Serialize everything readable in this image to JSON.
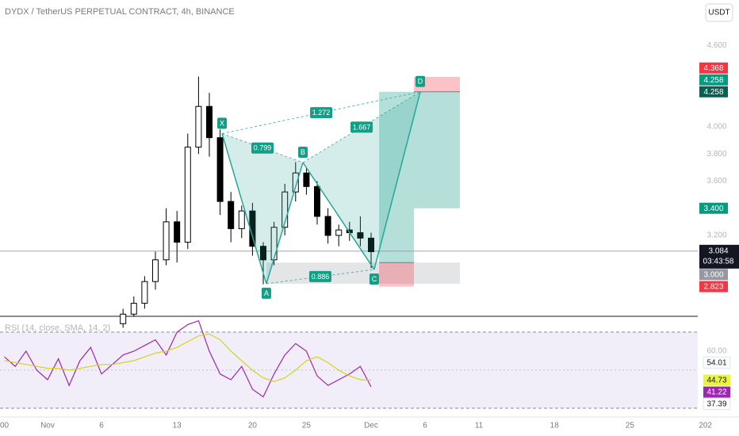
{
  "chart_data": {
    "type": "candlestick",
    "title": "DYDX / TetherUS PERPETUAL CONTRACT, 4h, BINANCE",
    "currency": "USDT",
    "x": [
      7,
      8,
      9,
      10,
      11,
      12,
      13,
      14,
      15,
      16,
      17,
      18,
      19,
      20,
      21,
      22,
      23,
      24,
      25,
      26,
      27,
      28,
      29,
      30
    ],
    "open": [
      2.55,
      2.62,
      2.7,
      2.86,
      3.02,
      3.3,
      3.15,
      3.85,
      4.15,
      3.92,
      3.45,
      3.25,
      3.38,
      3.12,
      3.02,
      3.26,
      3.52,
      3.66,
      3.56,
      3.34,
      3.2,
      3.24,
      3.22,
      3.18
    ],
    "high": [
      2.66,
      2.75,
      2.9,
      3.08,
      3.4,
      3.38,
      3.95,
      4.37,
      4.25,
      3.98,
      3.52,
      3.42,
      3.44,
      3.15,
      3.3,
      3.58,
      3.74,
      3.7,
      3.6,
      3.4,
      3.28,
      3.3,
      3.34,
      3.22
    ],
    "low": [
      2.52,
      2.6,
      2.66,
      2.8,
      2.98,
      3.0,
      3.1,
      3.8,
      3.78,
      3.35,
      3.15,
      3.18,
      3.05,
      2.84,
      2.98,
      3.2,
      3.45,
      3.5,
      3.28,
      3.14,
      3.12,
      3.16,
      3.12,
      2.96
    ],
    "close": [
      2.62,
      2.7,
      2.86,
      3.02,
      3.3,
      3.15,
      3.85,
      4.15,
      3.92,
      3.45,
      3.25,
      3.38,
      3.12,
      3.02,
      3.26,
      3.52,
      3.66,
      3.56,
      3.34,
      3.2,
      3.24,
      3.22,
      3.18,
      3.08
    ],
    "up_color": "#ffffff",
    "down_color": "#000000",
    "xlim": [
      -4.41,
      60.29
    ],
    "xticks": [
      {
        "value": -4,
        "label": "00"
      },
      {
        "value": 0,
        "label": "Nov"
      },
      {
        "value": 5,
        "label": "6"
      },
      {
        "value": 12,
        "label": "13"
      },
      {
        "value": 19,
        "label": "20"
      },
      {
        "value": 24,
        "label": "25"
      },
      {
        "value": 30,
        "label": "Dec"
      },
      {
        "value": 35,
        "label": "6"
      },
      {
        "value": 40,
        "label": "11"
      },
      {
        "value": 47,
        "label": "18"
      },
      {
        "value": 54,
        "label": "25"
      },
      {
        "value": 61,
        "label": "202"
      }
    ],
    "ylim": [
      2.61,
      4.934
    ],
    "yticks": [
      {
        "value": 4.6,
        "label": "4.600"
      },
      {
        "value": 4.0,
        "label": "4.000"
      },
      {
        "value": 3.8,
        "label": "3.800"
      },
      {
        "value": 3.6,
        "label": "3.600"
      },
      {
        "value": 3.2,
        "label": "3.200"
      }
    ],
    "last_price": {
      "value": 3.084,
      "countdown": "03:43:58"
    },
    "price_labels": [
      {
        "value": 4.368,
        "color": "#f23645"
      },
      {
        "value": 4.258,
        "color": "#0b5e52"
      },
      {
        "value": 4.258,
        "color": "#089981"
      },
      {
        "value": 3.4,
        "label": "3.400",
        "color": "#089981"
      },
      {
        "value": 3,
        "label": "3.000",
        "color": "#9598a1"
      },
      {
        "value": 2.823,
        "color": "#f23645"
      }
    ],
    "pattern": {
      "color": "#26a69a",
      "points": [
        {
          "name": "X",
          "x": 16.18,
          "y": 3.95
        },
        {
          "name": "A",
          "x": 20.29,
          "y": 2.844
        },
        {
          "name": "B",
          "x": 23.68,
          "y": 3.737
        },
        {
          "name": "C",
          "x": 30.29,
          "y": 2.949
        },
        {
          "name": "D",
          "x": 34.56,
          "y": 4.258
        }
      ],
      "ratios": {
        "XD": 1.272,
        "XB": 0.799,
        "BD": 1.667,
        "AC": 0.886
      }
    },
    "positions": [
      {
        "x": [
          30.74,
          33.97
        ],
        "entry": 3,
        "target": 4.258,
        "stop": 2.823
      },
      {
        "x": [
          33.97,
          38.23
        ],
        "entry": 4.258,
        "target": 3.4,
        "stop": 4.368
      }
    ],
    "rsi": {
      "title": "RSI (14, close, SMA, 14, 2)",
      "ylim": [
        27.9,
        77.9
      ],
      "yticks": [
        {
          "value": 60,
          "label": "60.00"
        }
      ],
      "band": [
        30,
        70
      ],
      "x": [
        -4,
        -3,
        -2,
        -1,
        0,
        1,
        2,
        3,
        4,
        5,
        6,
        7,
        8,
        9,
        10,
        11,
        12,
        13,
        14,
        15,
        16,
        17,
        18,
        19,
        20,
        21,
        22,
        23,
        24,
        25,
        26,
        27,
        28,
        29,
        30
      ],
      "series": [
        {
          "color": "#9c27b0",
          "values": [
            57,
            52,
            60,
            50,
            45,
            56,
            42,
            55,
            62,
            48,
            53,
            58,
            60,
            63,
            66,
            58,
            70,
            74,
            76,
            60,
            48,
            45,
            52,
            40,
            36,
            48,
            58,
            64,
            60,
            47,
            42,
            45,
            48,
            52,
            41.22
          ]
        },
        {
          "color": "#d4d41a",
          "values": [
            55,
            54,
            53,
            52,
            51,
            51,
            50,
            51,
            52,
            53,
            53,
            54,
            55,
            57,
            59,
            60,
            62,
            65,
            68,
            69,
            66,
            60,
            55,
            50,
            46,
            44,
            46,
            50,
            55,
            57,
            54,
            50,
            47,
            45,
            44.73
          ]
        }
      ],
      "labels": [
        {
          "value": 54.01,
          "color": "#ffffff"
        },
        {
          "value": 44.73,
          "color": "#e9f542"
        },
        {
          "value": 41.22,
          "color": "#9c27b0"
        },
        {
          "value": 37.39,
          "color": "#ffffff"
        }
      ]
    }
  }
}
